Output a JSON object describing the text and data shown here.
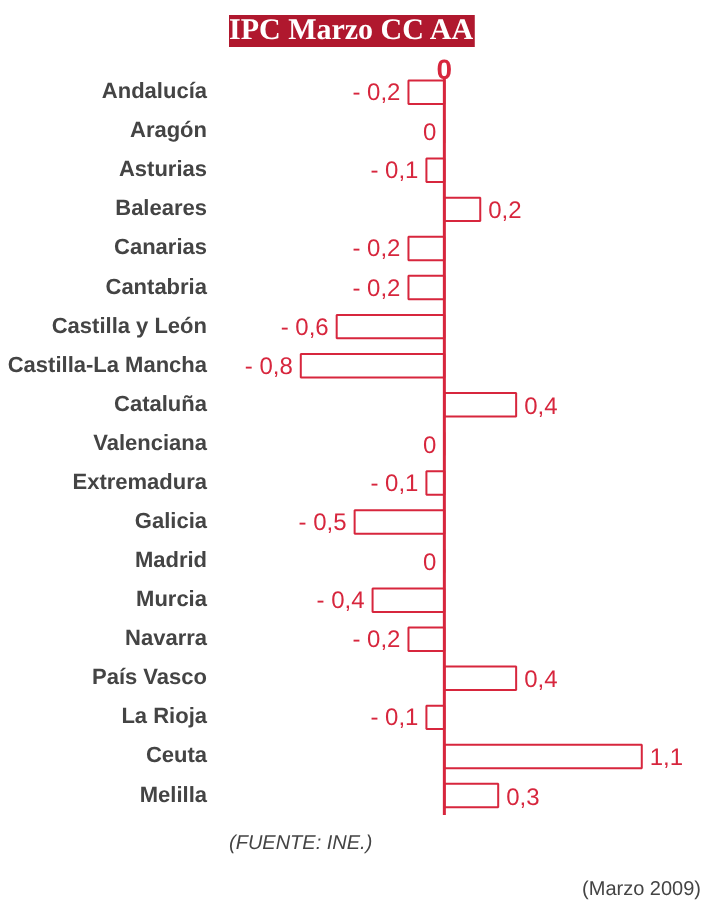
{
  "chart_data": {
    "type": "bar",
    "orientation": "horizontal",
    "title": "IPC Marzo CC AA",
    "categories": [
      "Andalucía",
      "Aragón",
      "Asturias",
      "Baleares",
      "Canarias",
      "Cantabria",
      "Castilla y León",
      "Castilla-La Mancha",
      "Cataluña",
      "Valenciana",
      "Extremadura",
      "Galicia",
      "Madrid",
      "Murcia",
      "Navarra",
      "País Vasco",
      "La Rioja",
      "Ceuta",
      "Melilla"
    ],
    "values": [
      -0.2,
      0,
      -0.1,
      0.2,
      -0.2,
      -0.2,
      -0.6,
      -0.8,
      0.4,
      0,
      -0.1,
      -0.5,
      0,
      -0.4,
      -0.2,
      0.4,
      -0.1,
      1.1,
      0.3
    ],
    "value_labels": [
      "- 0,2",
      "0",
      "- 0,1",
      "0,2",
      "- 0,2",
      "- 0,2",
      "- 0,6",
      "- 0,8",
      "0,4",
      "0",
      "- 0,1",
      "- 0,5",
      "0",
      "- 0,4",
      "- 0,2",
      "0,4",
      "- 0,1",
      "1,1",
      "0,3"
    ],
    "color": "#d7263d",
    "tick_labels": "y",
    "ref_lines": [
      {
        "axis": "x",
        "value": 0,
        "color": "#d7263d"
      }
    ],
    "annotations": [
      {
        "text": "0",
        "x": 0
      },
      "(FUENTE: INE.)",
      "(Marzo 2009)"
    ]
  }
}
